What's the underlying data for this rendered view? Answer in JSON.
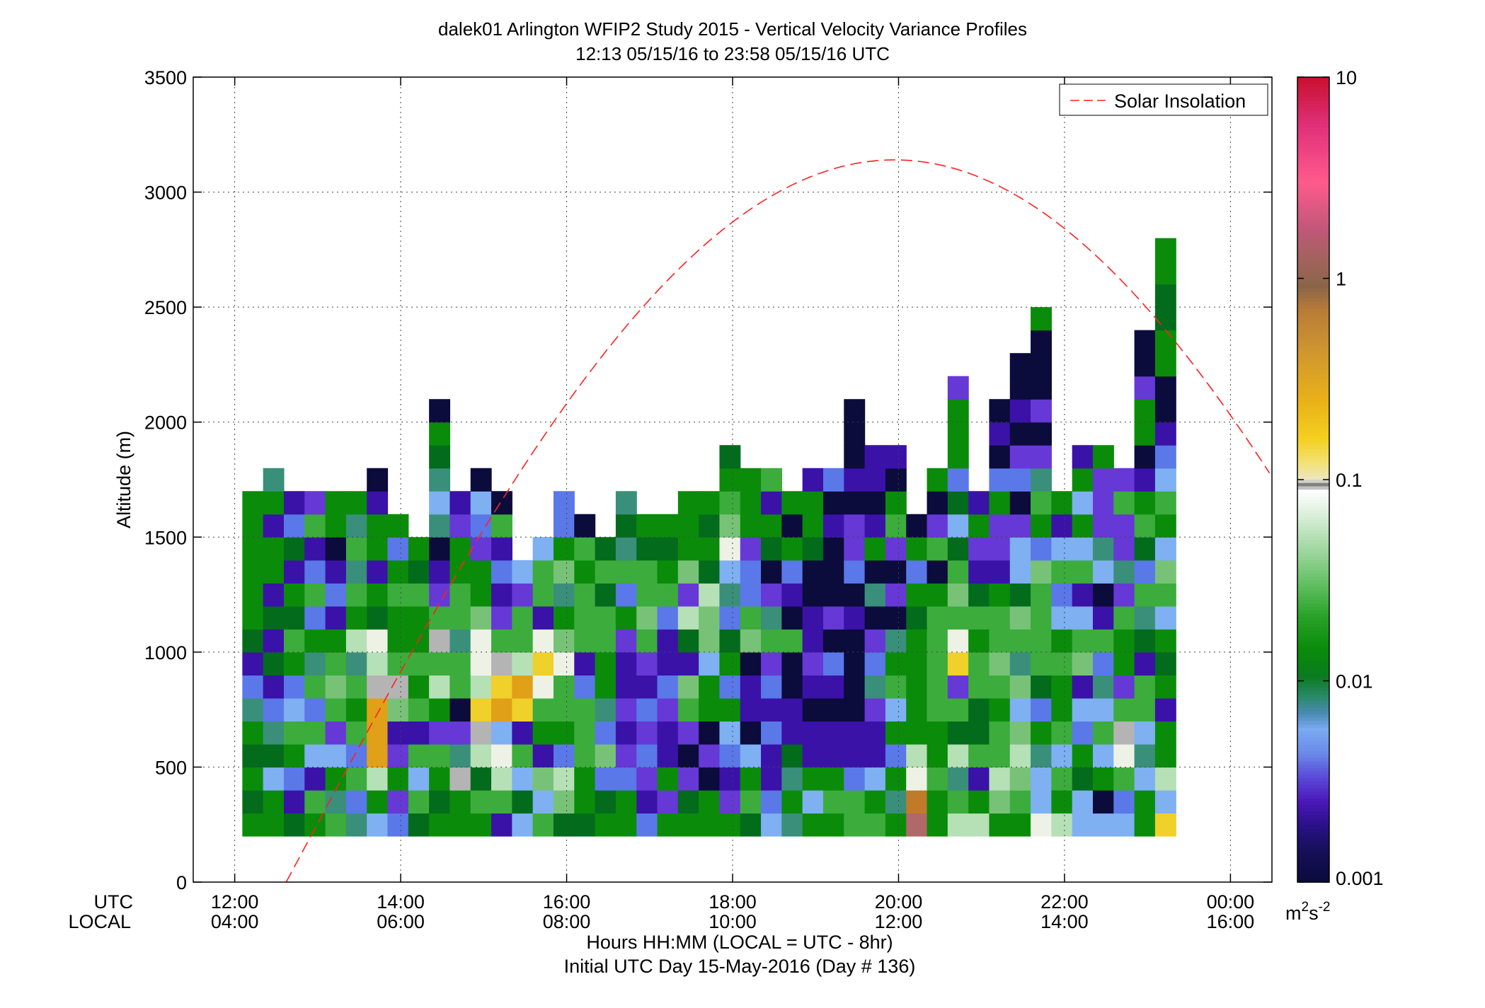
{
  "chart_data": {
    "type": "heatmap",
    "title": "dalek01 Arlington WFIP2 Study 2015 - Vertical Velocity Variance Profiles",
    "subtitle": "12:13 05/15/16 to 23:58 05/15/16  UTC",
    "ylabel": "Altitude (m)",
    "xlabel": "Hours HH:MM  (LOCAL = UTC - 8hr)",
    "xlabel2": "Initial UTC Day 15-May-2016 (Day # 136)",
    "utc_label": "UTC",
    "local_label": "LOCAL",
    "units": "m²s⁻²",
    "units_base": "m",
    "units_sup1": "2",
    "units_mid": "s",
    "units_sup2": "-2",
    "legend": "Solar Insolation",
    "ylim": [
      0,
      3500
    ],
    "xlim_hours": [
      11.5,
      24.5
    ],
    "y_ticks": [
      "0",
      "500",
      "1000",
      "1500",
      "2000",
      "2500",
      "3000",
      "3500"
    ],
    "x_ticks_utc": [
      "12:00",
      "14:00",
      "16:00",
      "18:00",
      "20:00",
      "22:00",
      "00:00"
    ],
    "x_ticks_local": [
      "04:00",
      "06:00",
      "08:00",
      "10:00",
      "12:00",
      "14:00",
      "16:00"
    ],
    "colorbar_ticks": [
      "10",
      "1",
      "0.1",
      "0.01",
      "0.001"
    ],
    "colorbar_range": [
      0.001,
      10
    ],
    "colorbar_scale": "log",
    "grid": true,
    "legend_position": "top-right",
    "time_start": "12:13",
    "time_step_min": 15,
    "alt_bottom": 200,
    "alt_step": 100,
    "color_key": {
      "K": "#0b0b3c",
      "P": "#3a12a8",
      "U": "#6638d6",
      "B": "#5a78e8",
      "L": "#7eb0f2",
      "T": "#3a8f7a",
      "D": "#036b1c",
      "G": "#0a8c0a",
      "M": "#3cac3c",
      "N": "#78c278",
      "E": "#b6e0b6",
      "W": "#eef2e6",
      "Y": "#f0d02a",
      "O": "#e0a018",
      "S": "#b4b4b4",
      "R": "#b06868",
      "C": "#c07a2a"
    },
    "columns": [
      "GDGDGTBPDGGGGGG",
      "GGLDTBPDPDPGGPGT",
      "DPBGMLBGMDGPDBP",
      "GMPLMBMTGBMBPMU",
      "MTGLUMNMGPBPKGG",
      "TBMBMGMTEGMTMTG",
      "LGEOOOSEWDGPGGPK",
      "BUGUPNSMGGMGBG",
      "DMLMPMGMGGMDG",
      "GDGMUGEMSMUPKTLTDGK",
      "GGSTUKMMTMMGGUP",
      "GMDESYEWWNGGUBLK",
      "PMEWLOYSMUPBPMK",
      "LDLMPYOEMMUL",
      "MLNPGMWYWPMML",
      "DNEBGMMWNGTNGBB",
      "DGGMMMBPMMMGMK",
      "GDBNBTGGMMDMD",
      "GGBUPUPPUGBMTDT",
      "BPUBUBPUMNMMDG",
      "GUGPPUBPPBMGDG",
      "GDUKUMNPDEUNGGG",
      "GGKUKGGLNNEDGDG",
      "GUPBLGBGDBTLWNMGD",
      "DMGLKPPKNMBBUGGG",
      "LBPPBPBUMTUKDGPM",
      "TGTDPPKKMKPBGKG",
      "GLGPPKPUPPKKDGGP",
      "GMGPPKPBKUKKKPKB",
      "MMBPPKKKKPKBUUKPKKK",
      "MGLPPUTBUKTKGPKPP",
      "GTGBGLMGTKUKUMGKP",
      "RCWEGGGGGDGBGK",
      "GGMGGMMMMMGKMUKG",
      "EMTEDMUYWMNMDLDBGGGU",
      "EGPMDDMMGMDPUGP",
      "GNEMMGMNMMGPUUGBKPK",
      "GMNENLNTMNDLLUKBUKPKK",
      "WLLTGBDMMMMNBGMTUKUKKKG",
      "EGMLMGGMGLBMLPG",
      "LLDGBLPNMLPMLGLGP",
      "LKGLMLTBMPKLTUUUG",
      "LBMWSMUGGMUTUUMU",
      "GGLTLMMPDTMBDMGPKGGUKK",
      "YLEGGPGDGLMNLGMLBPKKGGDDGG"
    ]
  }
}
